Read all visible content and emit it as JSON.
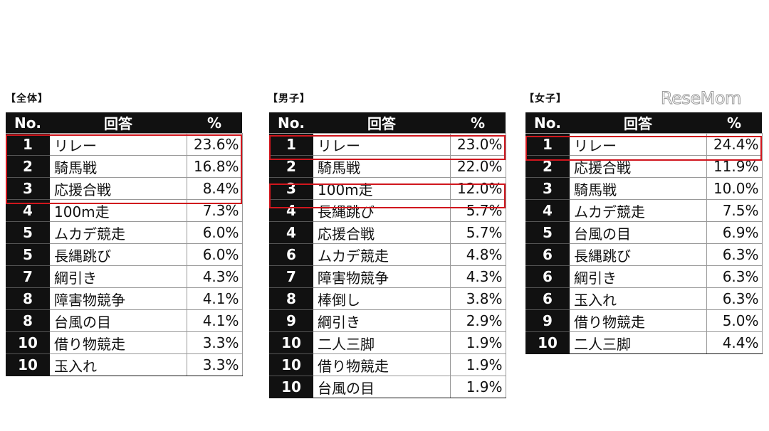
{
  "logo": "ReseMom",
  "headers": {
    "no": "No.",
    "answer": "回答",
    "pct": "%"
  },
  "tables": [
    {
      "caption": "【全体】",
      "rows": [
        {
          "no": "1",
          "answer": "リレー",
          "pct": "23.6%"
        },
        {
          "no": "2",
          "answer": "騎馬戦",
          "pct": "16.8%"
        },
        {
          "no": "3",
          "answer": "応援合戦",
          "pct": "8.4%"
        },
        {
          "no": "4",
          "answer": "100m走",
          "pct": "7.3%"
        },
        {
          "no": "5",
          "answer": "ムカデ競走",
          "pct": "6.0%"
        },
        {
          "no": "5",
          "answer": "長縄跳び",
          "pct": "6.0%"
        },
        {
          "no": "7",
          "answer": "綱引き",
          "pct": "4.3%"
        },
        {
          "no": "8",
          "answer": "障害物競争",
          "pct": "4.1%"
        },
        {
          "no": "8",
          "answer": "台風の目",
          "pct": "4.1%"
        },
        {
          "no": "10",
          "answer": "借り物競走",
          "pct": "3.3%"
        },
        {
          "no": "10",
          "answer": "玉入れ",
          "pct": "3.3%"
        }
      ]
    },
    {
      "caption": "【男子】",
      "rows": [
        {
          "no": "1",
          "answer": "リレー",
          "pct": "23.0%"
        },
        {
          "no": "2",
          "answer": "騎馬戦",
          "pct": "22.0%"
        },
        {
          "no": "3",
          "answer": "100m走",
          "pct": "12.0%"
        },
        {
          "no": "4",
          "answer": "長縄跳び",
          "pct": "5.7%"
        },
        {
          "no": "4",
          "answer": "応援合戦",
          "pct": "5.7%"
        },
        {
          "no": "6",
          "answer": "ムカデ競走",
          "pct": "4.8%"
        },
        {
          "no": "7",
          "answer": "障害物競争",
          "pct": "4.3%"
        },
        {
          "no": "8",
          "answer": "棒倒し",
          "pct": "3.8%"
        },
        {
          "no": "9",
          "answer": "綱引き",
          "pct": "2.9%"
        },
        {
          "no": "10",
          "answer": "二人三脚",
          "pct": "1.9%"
        },
        {
          "no": "10",
          "answer": "借り物競走",
          "pct": "1.9%"
        },
        {
          "no": "10",
          "answer": "台風の目",
          "pct": "1.9%"
        }
      ]
    },
    {
      "caption": "【女子】",
      "rows": [
        {
          "no": "1",
          "answer": "リレー",
          "pct": "24.4%"
        },
        {
          "no": "2",
          "answer": "応援合戦",
          "pct": "11.9%"
        },
        {
          "no": "3",
          "answer": "騎馬戦",
          "pct": "10.0%"
        },
        {
          "no": "4",
          "answer": "ムカデ競走",
          "pct": "7.5%"
        },
        {
          "no": "5",
          "answer": "台風の目",
          "pct": "6.9%"
        },
        {
          "no": "6",
          "answer": "長縄跳び",
          "pct": "6.3%"
        },
        {
          "no": "6",
          "answer": "綱引き",
          "pct": "6.3%"
        },
        {
          "no": "6",
          "answer": "玉入れ",
          "pct": "6.3%"
        },
        {
          "no": "9",
          "answer": "借り物競走",
          "pct": "5.0%"
        },
        {
          "no": "10",
          "answer": "二人三脚",
          "pct": "4.4%"
        }
      ]
    }
  ]
}
